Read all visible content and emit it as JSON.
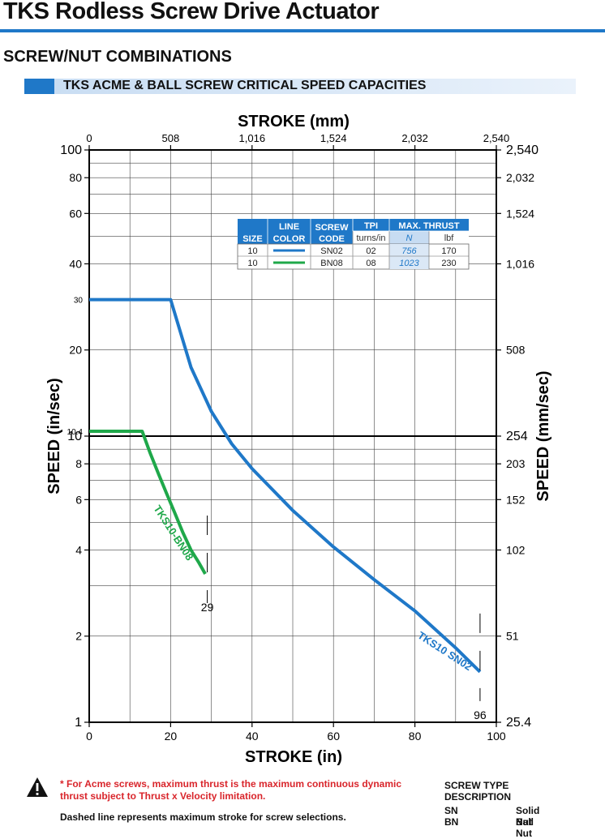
{
  "header": {
    "title": "TKS Rodless Screw Drive Actuator",
    "subtitle": "SCREW/NUT COMBINATIONS",
    "banner": "TKS ACME & BALL SCREW CRITICAL SPEED CAPACITIES",
    "accent_color": "#1f78c8"
  },
  "legend_table": {
    "headers": {
      "size": "SIZE",
      "line_color": [
        "LINE",
        "COLOR"
      ],
      "screw_code": [
        "SCREW",
        "CODE"
      ],
      "tpi": "TPI",
      "max_thrust": "MAX. THRUST"
    },
    "subheaders": {
      "tpi_unit": "turns/in",
      "thrust_n": "N",
      "thrust_lbf": "lbf"
    },
    "rows": [
      {
        "size": "10",
        "color": "#1f78c8",
        "code": "SN02",
        "tpi": "02",
        "thrust_n": "756",
        "thrust_lbf": "170"
      },
      {
        "size": "10",
        "color": "#1fa84a",
        "code": "BN08",
        "tpi": "08",
        "thrust_n": "1023",
        "thrust_lbf": "230"
      }
    ]
  },
  "chart_data": {
    "type": "line",
    "y_scale": "log",
    "x_range": [
      0,
      100
    ],
    "y_range": [
      1,
      100
    ],
    "xlabel_bottom": "STROKE (in)",
    "xlabel_top": "STROKE (mm)",
    "ylabel_left": "SPEED (in/sec)",
    "ylabel_right": "SPEED (mm/sec)",
    "x_ticks_bottom": [
      "0",
      "20",
      "40",
      "60",
      "80",
      "100"
    ],
    "x_ticks_top": [
      "0",
      "508",
      "1,016",
      "1,524",
      "2,032",
      "2,540"
    ],
    "y_ticks_left": [
      "1",
      "2",
      "4",
      "6",
      "8",
      "10",
      "20",
      "40",
      "60",
      "80",
      "100"
    ],
    "y_ticks_left_values": [
      1,
      2,
      4,
      6,
      8,
      10,
      20,
      40,
      60,
      80,
      100
    ],
    "y_ticks_right": [
      "25.4",
      "51",
      "102",
      "152",
      "203",
      "254",
      "508",
      "1,016",
      "1,524",
      "2,032",
      "2,540"
    ],
    "y_ticks_right_values": [
      1,
      2,
      4,
      6,
      8,
      10,
      20,
      40,
      60,
      80,
      100
    ],
    "extra_y_labels": [
      {
        "label": "30",
        "value": 30
      },
      {
        "label": "10.4",
        "value": 10.4
      }
    ],
    "grid": true,
    "series": [
      {
        "name": "TKS10 SN02",
        "color": "#1f78c8",
        "points": [
          [
            0,
            30
          ],
          [
            20,
            30
          ],
          [
            25,
            17.4
          ],
          [
            30,
            12.2
          ],
          [
            35,
            9.4
          ],
          [
            40,
            7.7
          ],
          [
            50,
            5.5
          ],
          [
            60,
            4.1
          ],
          [
            70,
            3.15
          ],
          [
            80,
            2.45
          ],
          [
            90,
            1.82
          ],
          [
            96,
            1.5
          ]
        ],
        "max_stroke": 96,
        "max_stroke_label": "96"
      },
      {
        "name": "TKS10-BN08",
        "color": "#1fa84a",
        "points": [
          [
            0,
            10.4
          ],
          [
            13,
            10.4
          ],
          [
            15,
            8.7
          ],
          [
            17,
            7.4
          ],
          [
            19,
            6.3
          ],
          [
            21,
            5.4
          ],
          [
            23,
            4.6
          ],
          [
            25,
            4.0
          ],
          [
            27,
            3.6
          ],
          [
            28.5,
            3.3
          ]
        ],
        "max_stroke": 29,
        "max_stroke_label": "29"
      }
    ]
  },
  "footer": {
    "note_red": "* For Acme screws, maximum thrust is the maximum continuous dynamic thrust subject to Thrust x Velocity limitation.",
    "note_black": "Dashed line represents maximum stroke for screw selections.",
    "screw_type_title": "SCREW TYPE",
    "screw_type_subtitle": "DESCRIPTION",
    "screw_types": [
      {
        "code": "SN",
        "desc": "Solid Nut"
      },
      {
        "code": "BN",
        "desc": "Ball Nut"
      }
    ]
  }
}
